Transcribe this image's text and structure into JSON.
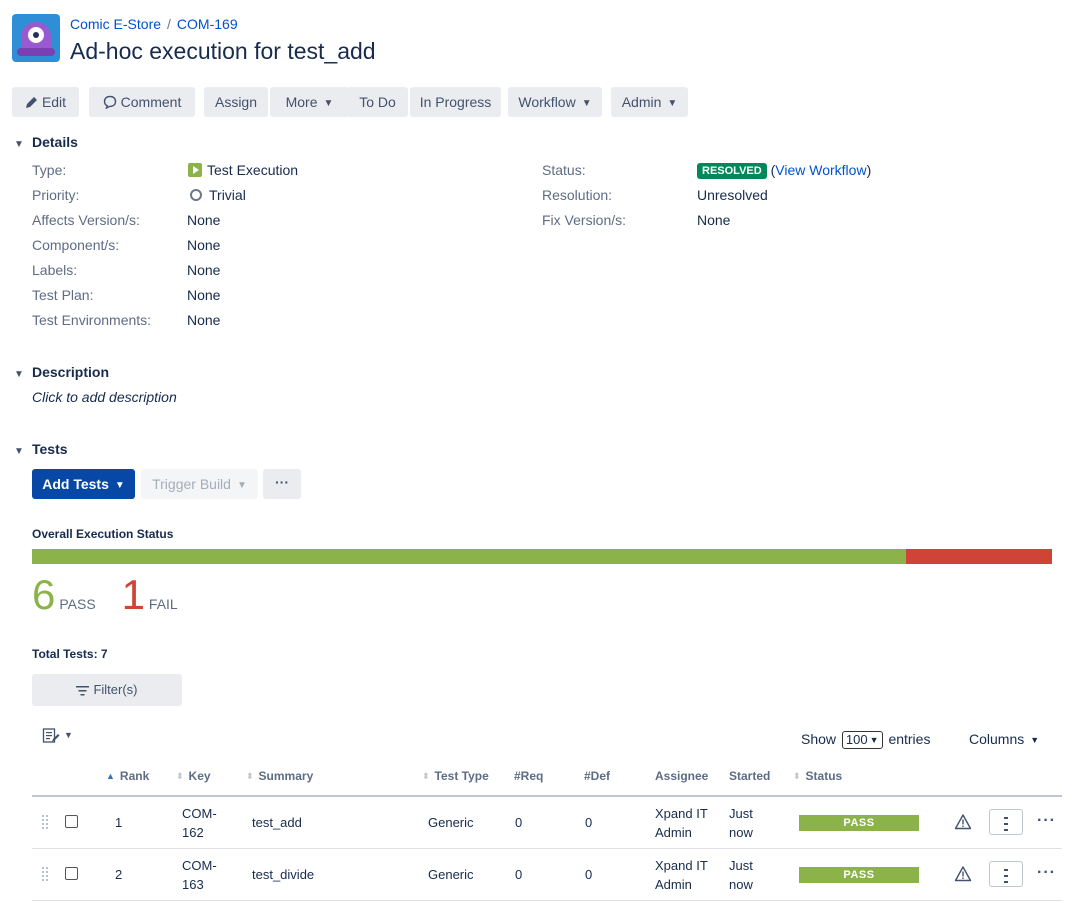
{
  "breadcrumbs": {
    "project": "Comic E-Store",
    "separator": "/",
    "issue_key": "COM-169"
  },
  "issue": {
    "title": "Ad-hoc execution for test_add"
  },
  "toolbar": {
    "edit": "Edit",
    "comment": "Comment",
    "assign": "Assign",
    "more": "More",
    "todo": "To Do",
    "in_progress": "In Progress",
    "workflow": "Workflow",
    "admin": "Admin"
  },
  "details": {
    "heading": "Details",
    "type_label": "Type:",
    "type_value": "Test Execution",
    "priority_label": "Priority:",
    "priority_value": "Trivial",
    "affects_label": "Affects Version/s:",
    "affects_value": "None",
    "components_label": "Component/s:",
    "components_value": "None",
    "labels_label": "Labels:",
    "labels_value": "None",
    "test_plan_label": "Test Plan:",
    "test_plan_value": "None",
    "test_env_label": "Test Environments:",
    "test_env_value": "None",
    "status_label": "Status:",
    "status_value": "RESOLVED",
    "view_workflow": "View Workflow",
    "resolution_label": "Resolution:",
    "resolution_value": "Unresolved",
    "fix_label": "Fix Version/s:",
    "fix_value": "None"
  },
  "description": {
    "heading": "Description",
    "placeholder": "Click to add description"
  },
  "tests": {
    "heading": "Tests",
    "add_tests": "Add Tests",
    "trigger_build": "Trigger Build",
    "more": "···",
    "overall_label": "Overall Execution Status",
    "pass_count": "6",
    "pass_label": "PASS",
    "fail_count": "1",
    "fail_label": "FAIL",
    "pass_fraction": 0.857,
    "fail_fraction": 0.143,
    "pass_color": "#8bb34a",
    "fail_color": "#d04437",
    "total_tests": "Total Tests: 7",
    "filter": "Filter(s)",
    "show": "Show",
    "entries_value": "100",
    "entries": "entries",
    "columns": "Columns"
  },
  "table": {
    "headers": {
      "rank": "Rank",
      "key": "Key",
      "summary": "Summary",
      "test_type": "Test Type",
      "req": "#Req",
      "def": "#Def",
      "assignee": "Assignee",
      "started": "Started",
      "status": "Status"
    },
    "rows": [
      {
        "rank": "1",
        "key": "COM-162",
        "summary": "test_add",
        "test_type": "Generic",
        "req": "0",
        "def": "0",
        "assignee": "Xpand IT Admin",
        "started": "Just now",
        "status": "PASS"
      },
      {
        "rank": "2",
        "key": "COM-163",
        "summary": "test_divide",
        "test_type": "Generic",
        "req": "0",
        "def": "0",
        "assignee": "Xpand IT Admin",
        "started": "Just now",
        "status": "PASS"
      }
    ]
  }
}
